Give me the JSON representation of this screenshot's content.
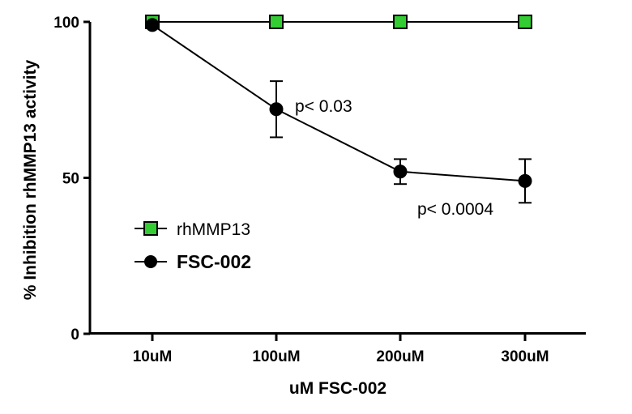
{
  "chart_data": {
    "type": "line",
    "xlabel": "uM  FSC-002",
    "ylabel": "% Inhibition rhMMP13 activity",
    "categories": [
      "10uM",
      "100uM",
      "200uM",
      "300uM"
    ],
    "ylim": [
      0,
      100
    ],
    "yticks": [
      0,
      50,
      100
    ],
    "grid": false,
    "legend_position": "left-middle",
    "series": [
      {
        "name": "rhMMP13",
        "marker": "square",
        "color": "#33cc33",
        "values": [
          100,
          100,
          100,
          100
        ],
        "errors": [
          0,
          0,
          0,
          0
        ]
      },
      {
        "name": "FSC-002",
        "marker": "circle",
        "color": "#000000",
        "values": [
          99,
          72,
          52,
          49
        ],
        "errors": [
          0,
          9,
          4,
          7
        ]
      }
    ],
    "annotations": [
      {
        "text": "p< 0.03",
        "category": "100uM"
      },
      {
        "text": "p< 0.0004",
        "category": "300uM"
      }
    ]
  }
}
